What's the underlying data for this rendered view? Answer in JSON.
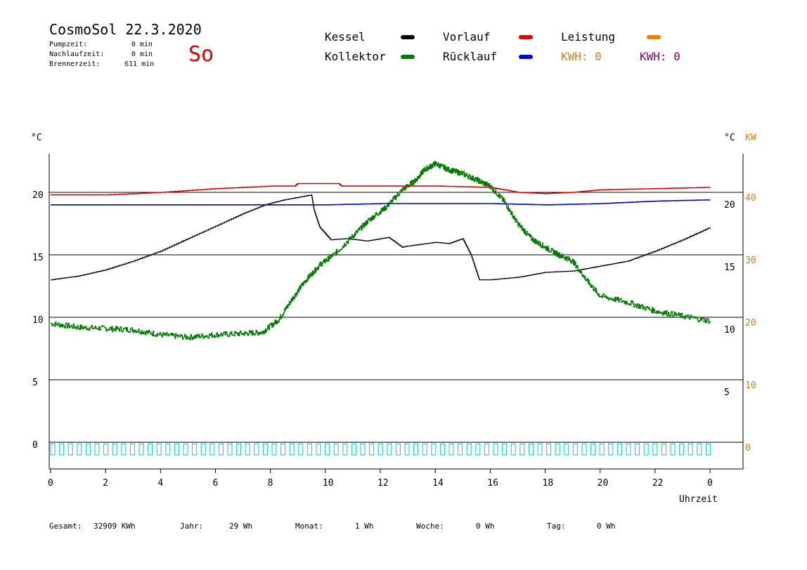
{
  "header": {
    "title": "CosmoSol 22.3.2020",
    "day": "So",
    "info": [
      {
        "label": "Pumpzeit:",
        "value": "0 min"
      },
      {
        "label": "Nachlaufzeit:",
        "value": "0 min"
      },
      {
        "label": "Brennerzeit:",
        "value": "611 min"
      }
    ]
  },
  "legend": {
    "kessel": "Kessel",
    "kollektor": "Kollektor",
    "vorlauf": "Vorlauf",
    "ruecklauf": "Rücklauf",
    "leistung": "Leistung",
    "kwh_orange": "KWH: 0",
    "kwh_purple": "KWH: 0"
  },
  "colors": {
    "kessel": "#000000",
    "kollektor": "#007a00",
    "vorlauf": "#e00000",
    "ruecklauf": "#0000e0",
    "leistung": "#f08000",
    "kwh_purple": "#800080",
    "pump": "#00d0d0",
    "axis_right_kw": "#e08000"
  },
  "footer": {
    "gesamt_label": "Gesamt:",
    "gesamt_value": "32909 KWh",
    "jahr_label": "Jahr:",
    "jahr_value": "29 Wh",
    "monat_label": "Monat:",
    "monat_value": "1 Wh",
    "woche_label": "Woche:",
    "woche_value": "0 Wh",
    "tag_label": "Tag:",
    "tag_value": "0 Wh"
  },
  "chart_data": {
    "type": "line",
    "xlabel": "Uhrzeit",
    "ylabel_left": "°C",
    "ylabel_right": "°C",
    "ylabel_right2": "KW",
    "xlim": [
      0,
      24
    ],
    "ylim_left": [
      -2,
      23.5
    ],
    "x_ticks": [
      "0",
      "2",
      "4",
      "6",
      "8",
      "10",
      "12",
      "14",
      "16",
      "18",
      "20",
      "22",
      "0"
    ],
    "y_ticks_left": [
      "0",
      "5",
      "10",
      "15",
      "20"
    ],
    "y_ticks_right": [
      "5",
      "10",
      "15",
      "20"
    ],
    "y_ticks_kw": [
      "0",
      "10",
      "20",
      "30",
      "40"
    ],
    "grid": true,
    "series": [
      {
        "name": "Kessel",
        "x": [
          0,
          1,
          2,
          3,
          4,
          5,
          6,
          7,
          7.8,
          8.5,
          9.5,
          9.6,
          9.8,
          10.2,
          10.8,
          11.5,
          12.3,
          12.8,
          13,
          14,
          14.5,
          15,
          15.3,
          15.6,
          16,
          17,
          18,
          19,
          20,
          21,
          22,
          23,
          24
        ],
        "y": [
          13,
          13.3,
          13.8,
          14.5,
          15.3,
          16.3,
          17.3,
          18.3,
          19,
          19.4,
          19.8,
          18.5,
          17.2,
          16.2,
          16.3,
          16.1,
          16.4,
          15.6,
          15.7,
          16,
          15.9,
          16.3,
          15,
          13,
          13,
          13.2,
          13.6,
          13.7,
          14.1,
          14.5,
          15.3,
          16.2,
          17.2
        ]
      },
      {
        "name": "Kollektor",
        "x": [
          0,
          1,
          2,
          3,
          4,
          5,
          6,
          7,
          7.7,
          8.3,
          8.8,
          9.3,
          9.8,
          10.3,
          11,
          11.6,
          12.2,
          12.8,
          13.3,
          13.6,
          14,
          14.5,
          15,
          15.5,
          16,
          16.5,
          17,
          17.5,
          18,
          18.5,
          19,
          19.5,
          20,
          21,
          22,
          23,
          24
        ],
        "y": [
          9.5,
          9.2,
          9.1,
          9.0,
          8.6,
          8.4,
          8.6,
          8.7,
          8.8,
          9.8,
          11.5,
          13,
          14.2,
          15,
          16.5,
          17.8,
          18.8,
          20.2,
          21,
          21.8,
          22.3,
          21.8,
          21.5,
          21,
          20.5,
          19.3,
          17.5,
          16.3,
          15.6,
          15,
          14.5,
          13,
          11.7,
          11.2,
          10.5,
          10.1,
          9.7
        ]
      },
      {
        "name": "Vorlauf",
        "x": [
          0,
          2,
          4,
          6,
          8,
          8.9,
          9,
          10.5,
          10.6,
          12,
          14,
          16,
          17,
          18,
          19,
          20,
          22,
          24
        ],
        "y": [
          19.8,
          19.8,
          20,
          20.3,
          20.5,
          20.5,
          20.7,
          20.7,
          20.5,
          20.5,
          20.5,
          20.4,
          20,
          19.9,
          20,
          20.2,
          20.3,
          20.4
        ]
      },
      {
        "name": "Rücklauf",
        "x": [
          0,
          4,
          8,
          10,
          12,
          16,
          18,
          20,
          22,
          24
        ],
        "y": [
          19,
          19,
          19,
          19,
          19.1,
          19.1,
          19,
          19.1,
          19.3,
          19.4
        ]
      },
      {
        "name": "Leistung",
        "x": [],
        "y": []
      }
    ]
  }
}
